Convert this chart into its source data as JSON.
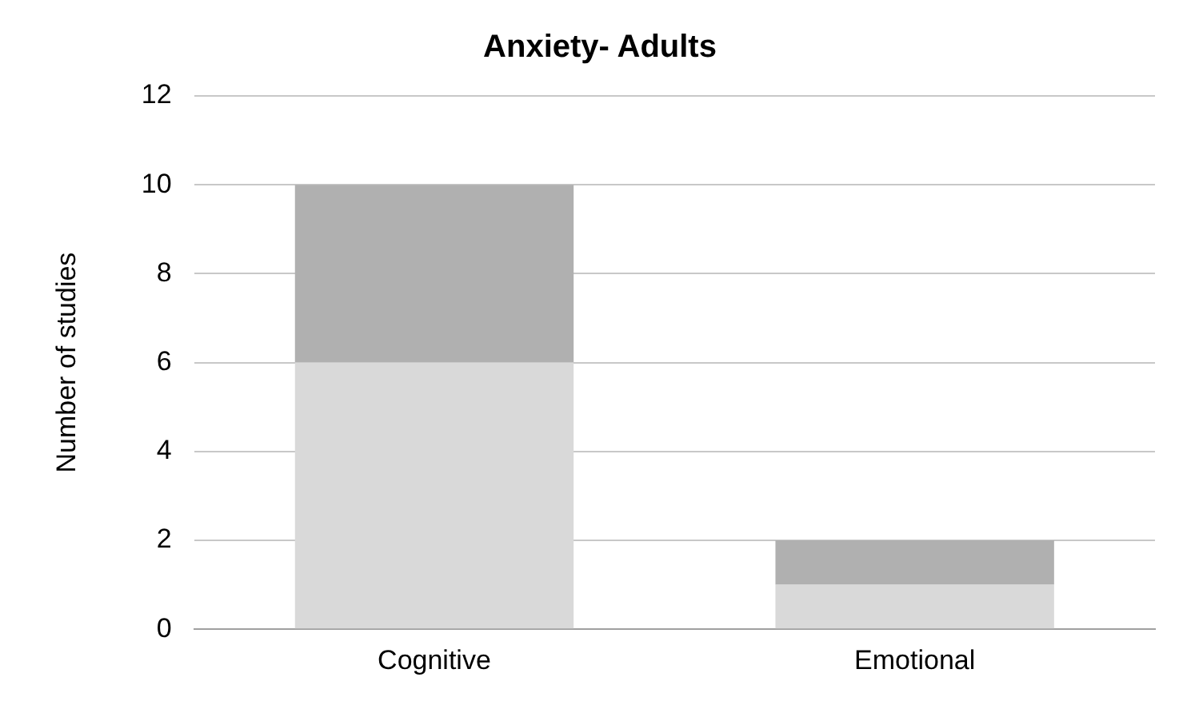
{
  "chart_data": {
    "type": "bar",
    "title": "Anxiety- Adults",
    "ylabel": "Number of studies",
    "categories": [
      "Cognitive",
      "Emotional"
    ],
    "stacked": true,
    "series": [
      {
        "color": "#d9d9d9",
        "values": [
          6,
          1
        ]
      },
      {
        "color": "#b0b0b0",
        "values": [
          4,
          1
        ]
      }
    ],
    "ylim": [
      0,
      12
    ],
    "yticks": [
      0,
      2,
      4,
      6,
      8,
      10,
      12
    ],
    "grid": "y",
    "legend": false
  }
}
